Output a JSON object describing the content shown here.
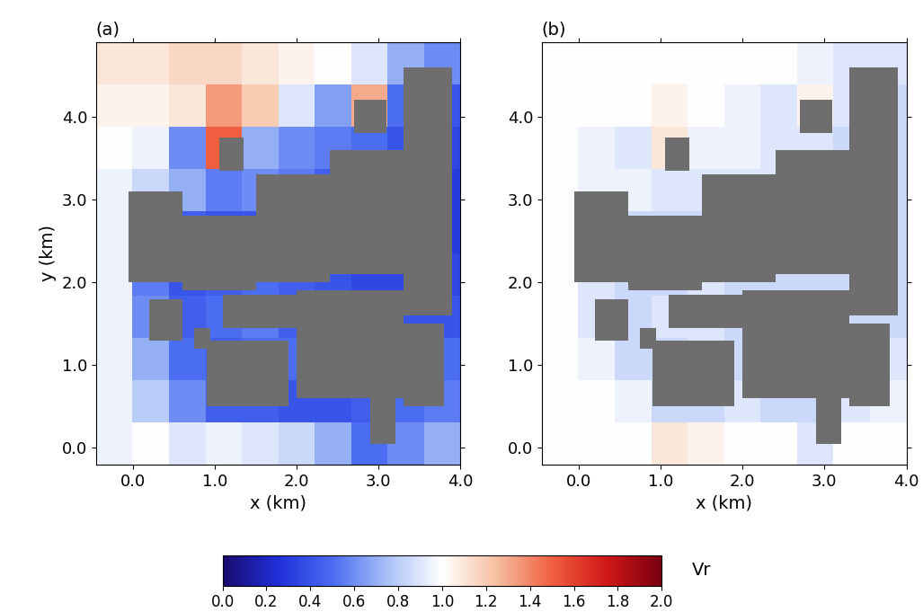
{
  "chart_data": [
    {
      "type": "heatmap",
      "title": "(a)",
      "x_label": "x (km)",
      "y_label": "y (km)",
      "xlim": [
        -0.45,
        4.0
      ],
      "ylim": [
        -0.2,
        4.9
      ],
      "xticks": [
        0.0,
        1.0,
        2.0,
        3.0,
        4.0
      ],
      "yticks": [
        0.0,
        1.0,
        2.0,
        3.0,
        4.0
      ],
      "x_edges": [
        -0.45,
        -0.005,
        0.44,
        0.885,
        1.33,
        1.775,
        2.22,
        2.665,
        3.11,
        3.555,
        4.0
      ],
      "y_edges": [
        -0.2,
        0.31,
        0.82,
        1.33,
        1.84,
        2.35,
        2.86,
        3.37,
        3.88,
        4.39,
        4.9
      ],
      "cells": [
        [
          0.95,
          1.0,
          0.9,
          0.95,
          0.9,
          0.85,
          0.7,
          0.5,
          0.6,
          0.7
        ],
        [
          0.95,
          0.8,
          0.6,
          0.45,
          0.45,
          0.4,
          0.4,
          0.45,
          0.5,
          0.55
        ],
        [
          0.95,
          0.7,
          0.5,
          0.45,
          0.5,
          0.5,
          0.45,
          0.4,
          0.45,
          0.5
        ],
        [
          0.95,
          0.6,
          0.45,
          0.5,
          0.55,
          0.45,
          0.4,
          0.4,
          0.4,
          0.4
        ],
        [
          0.95,
          0.55,
          0.4,
          0.45,
          0.5,
          0.45,
          0.4,
          0.35,
          0.35,
          0.35
        ],
        [
          0.95,
          0.55,
          0.45,
          0.4,
          0.4,
          0.35,
          0.35,
          0.35,
          0.3,
          0.3
        ],
        [
          0.95,
          0.85,
          0.7,
          0.55,
          0.6,
          0.55,
          0.45,
          0.4,
          0.35,
          0.3
        ],
        [
          1.0,
          0.95,
          0.6,
          1.5,
          0.7,
          0.6,
          0.55,
          0.5,
          0.4,
          0.35
        ],
        [
          1.05,
          1.05,
          1.1,
          1.35,
          1.2,
          0.9,
          0.65,
          1.3,
          0.5,
          0.4
        ],
        [
          1.1,
          1.1,
          1.15,
          1.15,
          1.1,
          1.05,
          1.0,
          0.9,
          0.7,
          0.6
        ]
      ]
    },
    {
      "type": "heatmap",
      "title": "(b)",
      "x_label": "x (km)",
      "xlim": [
        -0.45,
        4.0
      ],
      "ylim": [
        -0.2,
        4.9
      ],
      "xticks": [
        0.0,
        1.0,
        2.0,
        3.0,
        4.0
      ],
      "yticks": [
        0.0,
        1.0,
        2.0,
        3.0,
        4.0
      ],
      "x_edges": [
        -0.45,
        -0.005,
        0.44,
        0.885,
        1.33,
        1.775,
        2.22,
        2.665,
        3.11,
        3.555,
        4.0
      ],
      "y_edges": [
        -0.2,
        0.31,
        0.82,
        1.33,
        1.84,
        2.35,
        2.86,
        3.37,
        3.88,
        4.39,
        4.9
      ],
      "cells": [
        [
          1.0,
          1.0,
          1.0,
          1.1,
          1.05,
          1.0,
          1.0,
          0.9,
          1.0,
          1.0
        ],
        [
          1.0,
          1.0,
          0.95,
          0.85,
          0.85,
          0.9,
          0.85,
          0.85,
          0.9,
          0.95
        ],
        [
          1.0,
          0.95,
          0.85,
          0.85,
          0.9,
          0.85,
          0.85,
          0.85,
          0.85,
          0.9
        ],
        [
          1.0,
          0.9,
          0.85,
          0.9,
          0.9,
          0.85,
          0.85,
          0.85,
          0.85,
          0.85
        ],
        [
          1.0,
          0.9,
          0.85,
          0.85,
          0.9,
          0.85,
          0.85,
          0.85,
          0.85,
          0.85
        ],
        [
          1.0,
          0.9,
          0.85,
          0.85,
          0.85,
          0.85,
          0.85,
          0.85,
          0.85,
          0.85
        ],
        [
          1.0,
          0.95,
          0.95,
          0.9,
          0.9,
          0.9,
          0.9,
          0.85,
          0.85,
          0.85
        ],
        [
          1.0,
          0.95,
          0.9,
          1.1,
          0.95,
          0.95,
          0.9,
          0.9,
          0.85,
          0.85
        ],
        [
          1.0,
          1.0,
          1.0,
          1.05,
          1.0,
          0.95,
          0.9,
          1.05,
          0.9,
          0.85
        ],
        [
          1.0,
          1.0,
          1.0,
          1.0,
          1.0,
          1.0,
          1.0,
          0.95,
          0.9,
          0.9
        ]
      ]
    }
  ],
  "buildings": [
    [
      1.05,
      3.35,
      1.35,
      3.75
    ],
    [
      0.75,
      1.2,
      0.95,
      1.45
    ],
    [
      -0.05,
      2.0,
      0.6,
      3.1
    ],
    [
      0.6,
      1.9,
      1.5,
      2.8
    ],
    [
      1.5,
      2.0,
      2.4,
      3.3
    ],
    [
      2.4,
      2.1,
      3.3,
      3.6
    ],
    [
      3.3,
      1.6,
      3.9,
      4.6
    ],
    [
      2.7,
      3.8,
      3.1,
      4.2
    ],
    [
      0.9,
      0.5,
      1.9,
      1.3
    ],
    [
      2.0,
      0.6,
      3.3,
      1.9
    ],
    [
      2.9,
      0.05,
      3.2,
      0.6
    ],
    [
      0.2,
      1.3,
      0.6,
      1.8
    ],
    [
      1.1,
      1.45,
      2.0,
      1.85
    ],
    [
      3.3,
      0.5,
      3.8,
      1.5
    ]
  ],
  "colorbar": {
    "label": "Vr",
    "range": [
      0.0,
      2.0
    ],
    "ticks": [
      0.0,
      0.2,
      0.4,
      0.6,
      0.8,
      1.0,
      1.2,
      1.4,
      1.6,
      1.8,
      2.0
    ]
  }
}
